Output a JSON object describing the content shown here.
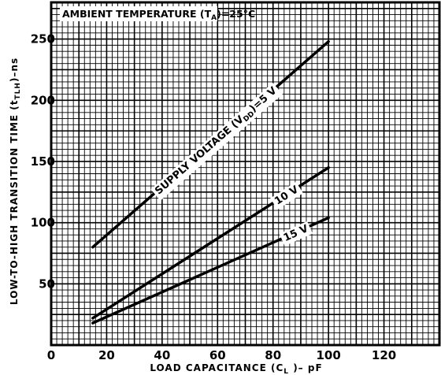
{
  "chart_data": {
    "type": "line",
    "annotation": {
      "prefix": "AMBIENT TEMPERATURE (T",
      "sub": "A",
      "suffix": ")=25°C"
    },
    "xlabel": {
      "prefix": "LOAD CAPACITANCE (C",
      "sub": "L",
      "suffix": " )– pF"
    },
    "ylabel": {
      "prefix": "LOW-TO-HIGH TRANSITION TIME (t",
      "sub": "TLH",
      "suffix": ")–ns"
    },
    "xlim": [
      0,
      140
    ],
    "ylim": [
      0,
      280
    ],
    "x_ticks": [
      "0",
      "20",
      "40",
      "60",
      "80",
      "100",
      "120"
    ],
    "y_ticks": [
      "50",
      "100",
      "150",
      "200",
      "250"
    ],
    "series": [
      {
        "name": "SUPPLY VOLTAGE (VDD)=5 V",
        "label_parts": [
          "SUPPLY VOLTAGE (V",
          "DD",
          ")=5 V"
        ],
        "x": [
          15,
          100
        ],
        "y": [
          80,
          248
        ]
      },
      {
        "name": "10 V",
        "label_parts": [
          "10 V"
        ],
        "x": [
          15,
          100
        ],
        "y": [
          22,
          145
        ]
      },
      {
        "name": "15 V",
        "label_parts": [
          "15 V"
        ],
        "x": [
          15,
          100
        ],
        "y": [
          18,
          104
        ]
      }
    ]
  }
}
